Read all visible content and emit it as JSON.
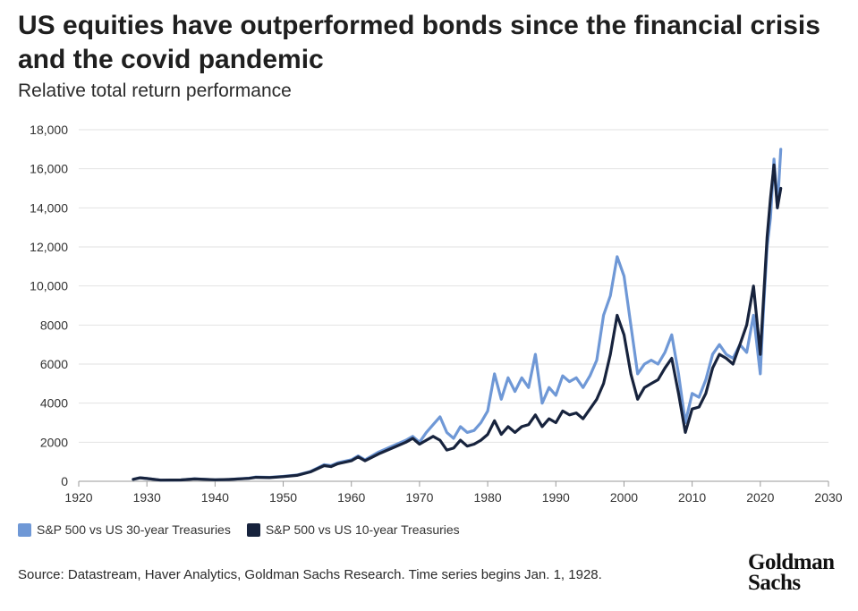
{
  "header": {
    "title": "US equities have outperformed bonds since the financial crisis and the covid pandemic",
    "subtitle": "Relative total return performance"
  },
  "legend": {
    "items": [
      {
        "label": "S&P 500 vs US 30-year Treasuries",
        "color": "#6f98d6"
      },
      {
        "label": "S&P 500 vs US 10-year Treasuries",
        "color": "#17233d"
      }
    ]
  },
  "footer": {
    "source": "Source: Datastream, Haver Analytics, Goldman Sachs Research. Time series begins Jan. 1, 1928.",
    "logo_line1": "Goldman",
    "logo_line2": "Sachs"
  },
  "chart_data": {
    "type": "line",
    "title": "US equities have outperformed bonds since the financial crisis and the covid pandemic",
    "subtitle": "Relative total return performance",
    "xlabel": "",
    "ylabel": "",
    "xlim": [
      1920,
      2030
    ],
    "ylim": [
      0,
      18000
    ],
    "x_ticks": [
      1920,
      1930,
      1940,
      1950,
      1960,
      1970,
      1980,
      1990,
      2000,
      2010,
      2020,
      2030
    ],
    "x_tick_labels": [
      "1920",
      "1930",
      "1940",
      "1950",
      "1960",
      "1970",
      "1980",
      "1990",
      "2000",
      "2010",
      "2020",
      "2030"
    ],
    "y_ticks": [
      0,
      2000,
      4000,
      6000,
      8000,
      10000,
      12000,
      14000,
      16000,
      18000
    ],
    "y_tick_labels": [
      "0",
      "2000",
      "4000",
      "6000",
      "8000",
      "10,000",
      "12,000",
      "14,000",
      "16,000",
      "18,000"
    ],
    "grid": "horizontal",
    "legend_position": "bottom-left",
    "series": [
      {
        "name": "S&P 500 vs US 30-year Treasuries",
        "color": "#6f98d6",
        "points": [
          [
            1928,
            100
          ],
          [
            1929,
            180
          ],
          [
            1930,
            140
          ],
          [
            1932,
            60
          ],
          [
            1935,
            70
          ],
          [
            1937,
            130
          ],
          [
            1940,
            80
          ],
          [
            1942,
            90
          ],
          [
            1945,
            160
          ],
          [
            1946,
            220
          ],
          [
            1948,
            200
          ],
          [
            1950,
            250
          ],
          [
            1952,
            320
          ],
          [
            1954,
            500
          ],
          [
            1956,
            850
          ],
          [
            1957,
            800
          ],
          [
            1958,
            950
          ],
          [
            1960,
            1100
          ],
          [
            1961,
            1300
          ],
          [
            1962,
            1100
          ],
          [
            1964,
            1500
          ],
          [
            1966,
            1800
          ],
          [
            1968,
            2100
          ],
          [
            1969,
            2300
          ],
          [
            1970,
            2000
          ],
          [
            1971,
            2500
          ],
          [
            1972,
            2900
          ],
          [
            1973,
            3300
          ],
          [
            1974,
            2500
          ],
          [
            1975,
            2200
          ],
          [
            1976,
            2800
          ],
          [
            1977,
            2500
          ],
          [
            1978,
            2600
          ],
          [
            1979,
            3000
          ],
          [
            1980,
            3600
          ],
          [
            1981,
            5500
          ],
          [
            1982,
            4200
          ],
          [
            1983,
            5300
          ],
          [
            1984,
            4600
          ],
          [
            1985,
            5300
          ],
          [
            1986,
            4800
          ],
          [
            1987,
            6500
          ],
          [
            1988,
            4000
          ],
          [
            1989,
            4800
          ],
          [
            1990,
            4400
          ],
          [
            1991,
            5400
          ],
          [
            1992,
            5100
          ],
          [
            1993,
            5300
          ],
          [
            1994,
            4800
          ],
          [
            1995,
            5400
          ],
          [
            1996,
            6200
          ],
          [
            1997,
            8500
          ],
          [
            1998,
            9500
          ],
          [
            1999,
            11500
          ],
          [
            2000,
            10500
          ],
          [
            2001,
            8000
          ],
          [
            2002,
            5500
          ],
          [
            2003,
            6000
          ],
          [
            2004,
            6200
          ],
          [
            2005,
            6000
          ],
          [
            2006,
            6600
          ],
          [
            2007,
            7500
          ],
          [
            2008,
            5500
          ],
          [
            2009,
            3000
          ],
          [
            2010,
            4500
          ],
          [
            2011,
            4300
          ],
          [
            2012,
            5200
          ],
          [
            2013,
            6500
          ],
          [
            2014,
            7000
          ],
          [
            2015,
            6500
          ],
          [
            2016,
            6300
          ],
          [
            2017,
            7000
          ],
          [
            2018,
            6600
          ],
          [
            2019,
            8500
          ],
          [
            2020,
            5500
          ],
          [
            2020.5,
            9000
          ],
          [
            2021,
            12000
          ],
          [
            2021.5,
            13500
          ],
          [
            2022,
            16500
          ],
          [
            2022.5,
            14000
          ],
          [
            2023,
            17000
          ]
        ]
      },
      {
        "name": "S&P 500 vs US 10-year Treasuries",
        "color": "#17233d",
        "points": [
          [
            1928,
            100
          ],
          [
            1929,
            180
          ],
          [
            1930,
            140
          ],
          [
            1932,
            60
          ],
          [
            1935,
            70
          ],
          [
            1937,
            120
          ],
          [
            1940,
            80
          ],
          [
            1942,
            90
          ],
          [
            1945,
            150
          ],
          [
            1946,
            200
          ],
          [
            1948,
            190
          ],
          [
            1950,
            240
          ],
          [
            1952,
            300
          ],
          [
            1954,
            480
          ],
          [
            1956,
            800
          ],
          [
            1957,
            750
          ],
          [
            1958,
            900
          ],
          [
            1960,
            1050
          ],
          [
            1961,
            1250
          ],
          [
            1962,
            1050
          ],
          [
            1964,
            1400
          ],
          [
            1966,
            1700
          ],
          [
            1968,
            2000
          ],
          [
            1969,
            2200
          ],
          [
            1970,
            1900
          ],
          [
            1971,
            2100
          ],
          [
            1972,
            2300
          ],
          [
            1973,
            2100
          ],
          [
            1974,
            1600
          ],
          [
            1975,
            1700
          ],
          [
            1976,
            2100
          ],
          [
            1977,
            1800
          ],
          [
            1978,
            1900
          ],
          [
            1979,
            2100
          ],
          [
            1980,
            2400
          ],
          [
            1981,
            3100
          ],
          [
            1982,
            2400
          ],
          [
            1983,
            2800
          ],
          [
            1984,
            2500
          ],
          [
            1985,
            2800
          ],
          [
            1986,
            2900
          ],
          [
            1987,
            3400
          ],
          [
            1988,
            2800
          ],
          [
            1989,
            3200
          ],
          [
            1990,
            3000
          ],
          [
            1991,
            3600
          ],
          [
            1992,
            3400
          ],
          [
            1993,
            3500
          ],
          [
            1994,
            3200
          ],
          [
            1995,
            3700
          ],
          [
            1996,
            4200
          ],
          [
            1997,
            5000
          ],
          [
            1998,
            6500
          ],
          [
            1999,
            8500
          ],
          [
            2000,
            7500
          ],
          [
            2001,
            5500
          ],
          [
            2002,
            4200
          ],
          [
            2003,
            4800
          ],
          [
            2004,
            5000
          ],
          [
            2005,
            5200
          ],
          [
            2006,
            5800
          ],
          [
            2007,
            6300
          ],
          [
            2008,
            4500
          ],
          [
            2009,
            2500
          ],
          [
            2010,
            3700
          ],
          [
            2011,
            3800
          ],
          [
            2012,
            4500
          ],
          [
            2013,
            5800
          ],
          [
            2014,
            6500
          ],
          [
            2015,
            6300
          ],
          [
            2016,
            6000
          ],
          [
            2017,
            7000
          ],
          [
            2018,
            8000
          ],
          [
            2019,
            10000
          ],
          [
            2020,
            6500
          ],
          [
            2020.5,
            9500
          ],
          [
            2021,
            12500
          ],
          [
            2021.5,
            14500
          ],
          [
            2022,
            16200
          ],
          [
            2022.5,
            14000
          ],
          [
            2023,
            15000
          ]
        ]
      }
    ]
  }
}
